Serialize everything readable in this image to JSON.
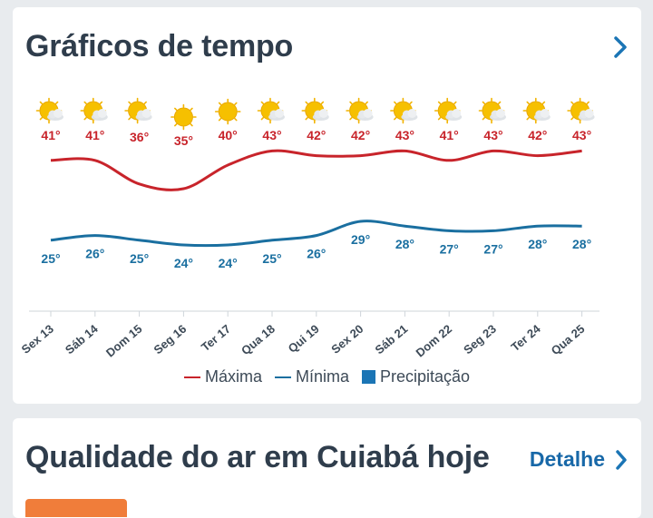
{
  "weather_card": {
    "title": "Gráficos de tempo",
    "legend": {
      "max_label": "Máxima",
      "min_label": "Mínima",
      "precip_label": "Precipitação"
    }
  },
  "air_card": {
    "title": "Qualidade do ar em Cuiabá hoje",
    "detail_label": "Detalhe"
  },
  "colors": {
    "max": "#c8242b",
    "min": "#1a6fa0",
    "precip": "#1b75b5",
    "aqi_badge": "#f07d3a",
    "link": "#1868a8"
  },
  "chart_data": {
    "type": "line",
    "categories": [
      "Sex 13",
      "Sáb 14",
      "Dom 15",
      "Seg 16",
      "Ter 17",
      "Qua 18",
      "Qui 19",
      "Sex 20",
      "Sáb 21",
      "Dom 22",
      "Seg 23",
      "Ter 24",
      "Qua 25"
    ],
    "series": [
      {
        "name": "Máxima",
        "values": [
          41,
          41,
          36,
          35,
          40,
          43,
          42,
          42,
          43,
          41,
          43,
          42,
          43
        ]
      },
      {
        "name": "Mínima",
        "values": [
          25,
          26,
          25,
          24,
          24,
          25,
          26,
          29,
          28,
          27,
          27,
          28,
          28
        ]
      }
    ],
    "max_labels": [
      "41°",
      "41°",
      "36°",
      "35°",
      "40°",
      "43°",
      "42°",
      "42°",
      "43°",
      "41°",
      "43°",
      "42°",
      "43°"
    ],
    "min_labels": [
      "25°",
      "26°",
      "25°",
      "24°",
      "24°",
      "25°",
      "26°",
      "29°",
      "28°",
      "27°",
      "27°",
      "28°",
      "28°"
    ],
    "icons": [
      "partly-sunny-icon",
      "partly-sunny-icon",
      "partly-sunny-icon",
      "sunny-icon",
      "sunny-icon",
      "partly-sunny-icon",
      "partly-sunny-icon",
      "partly-sunny-icon",
      "partly-sunny-icon",
      "partly-sunny-icon",
      "partly-sunny-icon",
      "partly-sunny-icon",
      "partly-sunny-icon"
    ],
    "grid": false,
    "legend_position": "bottom"
  }
}
